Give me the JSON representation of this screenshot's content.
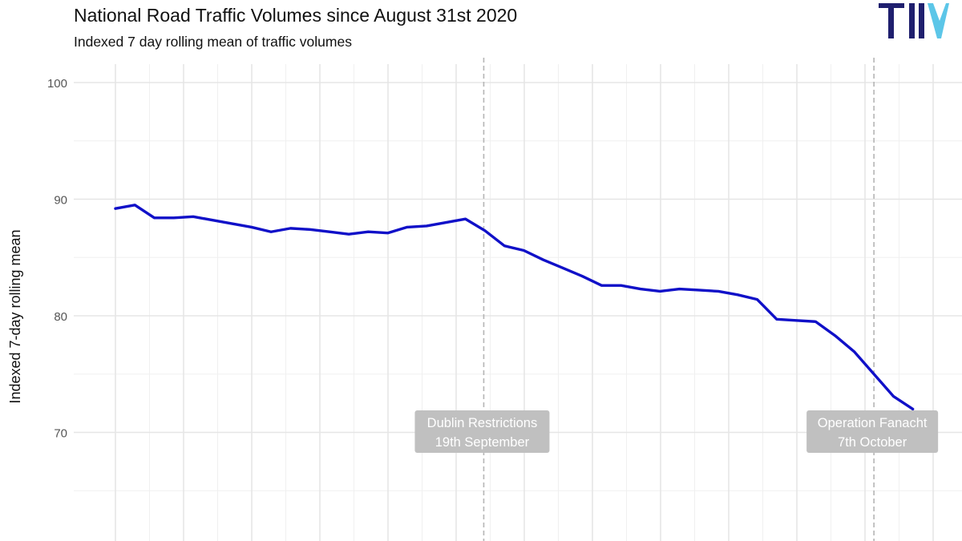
{
  "header": {
    "title": "National Road Traffic Volumes since August 31st 2020",
    "subtitle": "Indexed 7 day rolling mean of traffic volumes"
  },
  "logo": {
    "name": "TII logo",
    "text": "TII",
    "colors": {
      "text": "#1f1f6e",
      "accent": "#5cc6e8"
    }
  },
  "chart_data": {
    "type": "line",
    "title": "National Road Traffic Volumes since August 31st 2020",
    "subtitle": "Indexed 7 day rolling mean of traffic volumes",
    "xlabel": "",
    "ylabel": "Indexed 7-day rolling mean",
    "ylim": [
      63,
      102
    ],
    "yticks": [
      70,
      80,
      90,
      100
    ],
    "grid": true,
    "x_start": "2020-08-31",
    "series": [
      {
        "color": "#1010c8",
        "x": [
          "2020-08-31",
          "2020-09-01",
          "2020-09-02",
          "2020-09-03",
          "2020-09-04",
          "2020-09-05",
          "2020-09-06",
          "2020-09-07",
          "2020-09-08",
          "2020-09-09",
          "2020-09-10",
          "2020-09-11",
          "2020-09-12",
          "2020-09-13",
          "2020-09-14",
          "2020-09-15",
          "2020-09-16",
          "2020-09-17",
          "2020-09-18",
          "2020-09-19",
          "2020-09-20",
          "2020-09-21",
          "2020-09-22",
          "2020-09-23",
          "2020-09-24",
          "2020-09-25",
          "2020-09-26",
          "2020-09-27",
          "2020-09-28",
          "2020-09-29",
          "2020-09-30",
          "2020-10-01",
          "2020-10-02",
          "2020-10-03",
          "2020-10-04",
          "2020-10-05",
          "2020-10-06",
          "2020-10-07",
          "2020-10-08",
          "2020-10-09",
          "2020-10-10",
          "2020-10-11"
        ],
        "values": [
          89.2,
          89.5,
          88.4,
          88.4,
          88.5,
          88.2,
          87.9,
          87.6,
          87.2,
          87.5,
          87.4,
          87.2,
          87.0,
          87.2,
          87.1,
          87.6,
          87.7,
          88.0,
          88.3,
          87.3,
          86.0,
          85.6,
          84.8,
          84.1,
          83.4,
          82.6,
          82.6,
          82.3,
          82.1,
          82.3,
          82.2,
          82.1,
          81.8,
          81.4,
          79.7,
          79.6,
          79.5,
          78.3,
          76.9,
          75.0,
          73.1,
          72.0
        ]
      }
    ],
    "annotations": [
      {
        "x": "2020-09-19",
        "line1": "Dublin Restrictions",
        "line2": "19th September"
      },
      {
        "x": "2020-10-09",
        "line1": "Operation Fanacht",
        "line2": "7th October"
      }
    ]
  }
}
